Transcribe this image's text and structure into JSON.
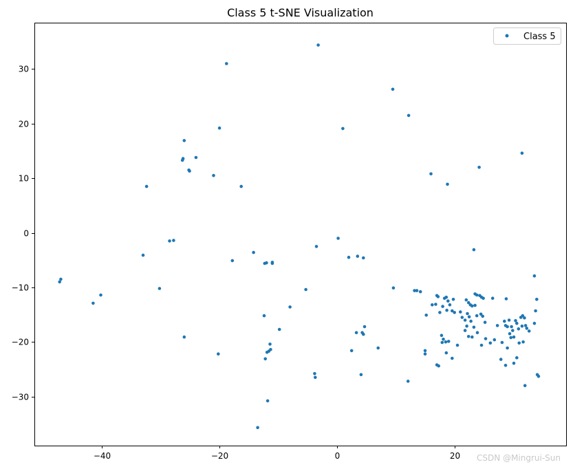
{
  "chart_data": {
    "type": "scatter",
    "title": "Class 5 t-SNE Visualization",
    "xlabel": "",
    "ylabel": "",
    "xlim": [
      -51.5,
      39
    ],
    "ylim": [
      -39,
      38.5
    ],
    "x_ticks": [
      -40,
      -20,
      0,
      20
    ],
    "y_ticks": [
      -30,
      -20,
      -10,
      0,
      10,
      20,
      30
    ],
    "grid": false,
    "legend_position": "top-right",
    "series": [
      {
        "name": "Class 5",
        "color": "#1f77b4",
        "points": [
          [
            -3.2,
            34.4
          ],
          [
            -18.8,
            31.0
          ],
          [
            9.5,
            26.3
          ],
          [
            12.2,
            21.5
          ],
          [
            -20.0,
            19.2
          ],
          [
            1.0,
            19.1
          ],
          [
            -26.0,
            16.9
          ],
          [
            -26.2,
            13.6
          ],
          [
            -26.3,
            13.3
          ],
          [
            -24.0,
            13.8
          ],
          [
            -25.2,
            11.5
          ],
          [
            -25.1,
            11.3
          ],
          [
            -21.0,
            10.5
          ],
          [
            -32.4,
            8.5
          ],
          [
            -16.3,
            8.5
          ],
          [
            16.0,
            10.8
          ],
          [
            24.2,
            12.0
          ],
          [
            18.8,
            8.9
          ],
          [
            31.5,
            14.6
          ],
          [
            0.2,
            -1.0
          ],
          [
            -3.5,
            -2.5
          ],
          [
            -28.5,
            -1.5
          ],
          [
            -27.8,
            -1.4
          ],
          [
            23.3,
            -3.1
          ],
          [
            -14.2,
            -3.6
          ],
          [
            -33.0,
            -4.1
          ],
          [
            -17.8,
            -5.1
          ],
          [
            2.0,
            -4.5
          ],
          [
            3.5,
            -4.3
          ],
          [
            4.5,
            -4.6
          ],
          [
            -12.3,
            -5.6
          ],
          [
            -12.0,
            -5.5
          ],
          [
            -11.0,
            -5.4
          ],
          [
            -11.0,
            -5.6
          ],
          [
            33.6,
            -7.9
          ],
          [
            -47.2,
            -9.0
          ],
          [
            -47.0,
            -8.5
          ],
          [
            -40.2,
            -11.4
          ],
          [
            -41.5,
            -12.9
          ],
          [
            -30.2,
            -10.2
          ],
          [
            -5.3,
            -10.4
          ],
          [
            9.6,
            -10.1
          ],
          [
            -8.0,
            -13.6
          ],
          [
            -12.4,
            -15.2
          ],
          [
            -9.8,
            -17.7
          ],
          [
            13.2,
            -10.6
          ],
          [
            13.6,
            -10.6
          ],
          [
            14.2,
            -10.8
          ],
          [
            15.2,
            -15.1
          ],
          [
            16.2,
            -13.2
          ],
          [
            17.0,
            -11.5
          ],
          [
            17.2,
            -11.7
          ],
          [
            16.8,
            -13.1
          ],
          [
            17.5,
            -14.6
          ],
          [
            18.0,
            -13.5
          ],
          [
            18.3,
            -12.0
          ],
          [
            18.6,
            -11.8
          ],
          [
            18.9,
            -12.5
          ],
          [
            19.2,
            -13.2
          ],
          [
            19.6,
            -14.3
          ],
          [
            19.8,
            -12.2
          ],
          [
            20.0,
            -14.6
          ],
          [
            18.7,
            -14.2
          ],
          [
            17.8,
            -18.8
          ],
          [
            18.1,
            -19.5
          ],
          [
            17.9,
            -20.1
          ],
          [
            18.5,
            -20.0
          ],
          [
            19.0,
            -19.9
          ],
          [
            20.5,
            -20.6
          ],
          [
            21.0,
            -14.5
          ],
          [
            21.3,
            -15.5
          ],
          [
            21.8,
            -16.0
          ],
          [
            22.0,
            -12.3
          ],
          [
            22.4,
            -12.8
          ],
          [
            22.7,
            -13.2
          ],
          [
            23.0,
            -13.4
          ],
          [
            22.2,
            -14.8
          ],
          [
            22.5,
            -15.4
          ],
          [
            22.8,
            -16.2
          ],
          [
            22.1,
            -17.1
          ],
          [
            21.8,
            -17.9
          ],
          [
            22.4,
            -19.0
          ],
          [
            23.0,
            -19.1
          ],
          [
            23.5,
            -11.2
          ],
          [
            23.8,
            -11.4
          ],
          [
            24.3,
            -11.5
          ],
          [
            24.6,
            -11.8
          ],
          [
            24.9,
            -12.0
          ],
          [
            23.5,
            -13.3
          ],
          [
            23.8,
            -15.2
          ],
          [
            24.5,
            -14.9
          ],
          [
            24.8,
            -15.3
          ],
          [
            25.2,
            -16.4
          ],
          [
            23.3,
            -17.3
          ],
          [
            23.9,
            -18.3
          ],
          [
            24.6,
            -20.6
          ],
          [
            25.3,
            -19.4
          ],
          [
            26.1,
            -20.2
          ],
          [
            26.5,
            -12.0
          ],
          [
            26.8,
            -19.6
          ],
          [
            27.3,
            -17.0
          ],
          [
            27.9,
            -23.2
          ],
          [
            28.1,
            -20.1
          ],
          [
            28.8,
            -12.1
          ],
          [
            28.5,
            -16.2
          ],
          [
            28.7,
            -17.0
          ],
          [
            29.0,
            -17.2
          ],
          [
            29.3,
            -16.0
          ],
          [
            29.7,
            -17.2
          ],
          [
            29.9,
            -17.9
          ],
          [
            30.1,
            -19.1
          ],
          [
            29.4,
            -18.5
          ],
          [
            28.7,
            -24.3
          ],
          [
            29.6,
            -19.2
          ],
          [
            29.0,
            -21.1
          ],
          [
            30.4,
            -16.1
          ],
          [
            30.6,
            -16.6
          ],
          [
            30.9,
            -17.6
          ],
          [
            31.3,
            -15.5
          ],
          [
            31.6,
            -15.2
          ],
          [
            31.9,
            -15.6
          ],
          [
            31.5,
            -17.1
          ],
          [
            32.1,
            -17.0
          ],
          [
            32.3,
            -17.5
          ],
          [
            32.7,
            -18.0
          ],
          [
            31.0,
            -20.2
          ],
          [
            31.7,
            -20.0
          ],
          [
            30.6,
            -22.9
          ],
          [
            30.1,
            -23.9
          ],
          [
            32.0,
            -28.0
          ],
          [
            33.6,
            -16.6
          ],
          [
            33.8,
            -14.3
          ],
          [
            34.0,
            -12.2
          ],
          [
            34.1,
            -26.0
          ],
          [
            34.3,
            -26.3
          ],
          [
            17.0,
            -24.2
          ],
          [
            17.3,
            -24.4
          ],
          [
            19.6,
            -23.0
          ],
          [
            18.6,
            -22.0
          ],
          [
            15.0,
            -21.6
          ],
          [
            15.0,
            -22.2
          ],
          [
            12.1,
            -27.2
          ],
          [
            7.0,
            -21.1
          ],
          [
            4.7,
            -17.2
          ],
          [
            4.3,
            -18.3
          ],
          [
            4.5,
            -18.6
          ],
          [
            3.3,
            -18.3
          ],
          [
            2.5,
            -21.6
          ],
          [
            4.1,
            -26.0
          ],
          [
            -3.8,
            -25.8
          ],
          [
            -3.7,
            -26.5
          ],
          [
            -11.4,
            -20.4
          ],
          [
            -11.3,
            -21.4
          ],
          [
            -11.6,
            -21.7
          ],
          [
            -11.9,
            -21.9
          ],
          [
            -12.2,
            -23.1
          ],
          [
            -11.8,
            -30.8
          ],
          [
            -13.5,
            -35.7
          ],
          [
            -20.2,
            -22.2
          ],
          [
            -26.0,
            -19.1
          ]
        ]
      }
    ]
  },
  "watermark": "CSDN @Mingrui-Sun"
}
